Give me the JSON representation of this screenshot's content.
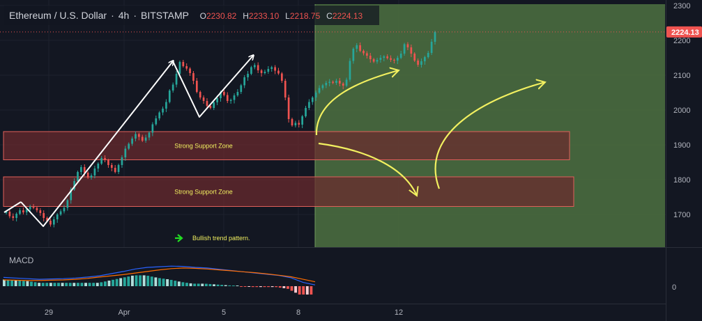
{
  "header": {
    "symbol": "Ethereum / U.S. Dollar",
    "interval": "4h",
    "exchange": "BITSTAMP",
    "ohlc": [
      {
        "key": "O",
        "value": "2230.82"
      },
      {
        "key": "H",
        "value": "2233.10"
      },
      {
        "key": "L",
        "value": "2218.75"
      },
      {
        "key": "C",
        "value": "2224.13"
      }
    ]
  },
  "colors": {
    "background": "#131722",
    "up": "#26a69a",
    "down": "#ef5350",
    "zone_fill": "#6b2a2e",
    "zone_border": "#e0605a",
    "projection_fill": "#4a6b3f",
    "arrow_yellow": "#f2f060",
    "macd_line": "#2962ff",
    "signal_line": "#ff6d00",
    "pattern_arrow": "#22dd22"
  },
  "chart_data": {
    "type": "candlestick",
    "ylim": [
      1610,
      2300
    ],
    "y_ticks": [
      1700,
      1800,
      1900,
      2000,
      2100,
      2200,
      2300
    ],
    "x_tick_labels": [
      "29",
      "Apr",
      "5",
      "8",
      "12"
    ],
    "last_price": 2224.13,
    "grid": true,
    "zones": [
      {
        "label": "Strong Support Zone",
        "low": 1857,
        "high": 1938
      },
      {
        "label": "Strong Support Zone",
        "low": 1723,
        "high": 1808
      }
    ],
    "annotation": {
      "label": "Bullish trend pattern.",
      "icon": "green-right-arrow-icon"
    },
    "close_series": [
      1708,
      1695,
      1690,
      1702,
      1712,
      1706,
      1715,
      1722,
      1719,
      1712,
      1704,
      1690,
      1682,
      1671,
      1686,
      1700,
      1709,
      1719,
      1741,
      1772,
      1796,
      1822,
      1836,
      1820,
      1806,
      1812,
      1832,
      1846,
      1862,
      1856,
      1842,
      1834,
      1822,
      1842,
      1864,
      1889,
      1903,
      1918,
      1931,
      1923,
      1912,
      1921,
      1935,
      1959,
      1976,
      1993,
      2004,
      2023,
      2056,
      2073,
      2104,
      2138,
      2126,
      2119,
      2106,
      2084,
      2052,
      2036,
      2026,
      2012,
      2006,
      2022,
      2034,
      2052,
      2043,
      2026,
      2029,
      2042,
      2052,
      2071,
      2094,
      2104,
      2123,
      2129,
      2114,
      2106,
      2110,
      2118,
      2123,
      2113,
      2105,
      2084,
      2036,
      1974,
      1956,
      1963,
      1958,
      1982,
      2006,
      2023,
      2036,
      2050,
      2063,
      2071,
      2078,
      2081,
      2078,
      2084,
      2076,
      2070,
      2087,
      2141,
      2176,
      2186,
      2170,
      2163,
      2156,
      2146,
      2139,
      2144,
      2150,
      2154,
      2149,
      2144,
      2142,
      2150,
      2162,
      2189,
      2180,
      2162,
      2142,
      2130,
      2140,
      2152,
      2164,
      2196,
      2224
    ],
    "macd_line": [
      28,
      26,
      24,
      22,
      23,
      24,
      26,
      29,
      33,
      40,
      47,
      55,
      60,
      62,
      64,
      63,
      60,
      58,
      54,
      50,
      46,
      42,
      38,
      34,
      27,
      12,
      4
    ],
    "signal_line": [
      20,
      19,
      18,
      18,
      19,
      20,
      22,
      25,
      29,
      33,
      37,
      42,
      47,
      52,
      56,
      58,
      57,
      55,
      52,
      49,
      46,
      43,
      39,
      35,
      30,
      22,
      14
    ],
    "macd_zero_label": "0"
  },
  "macd": {
    "label": "MACD"
  }
}
